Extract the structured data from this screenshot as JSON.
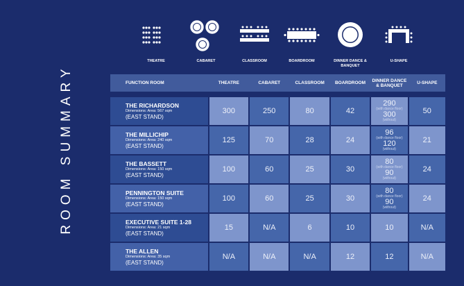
{
  "page_title": "ROOM SUMMARY",
  "layouts": [
    {
      "label": "THEATRE",
      "icon": "theatre-layout-icon"
    },
    {
      "label": "CABARET",
      "icon": "cabaret-layout-icon"
    },
    {
      "label": "CLASSROOM",
      "icon": "classroom-layout-icon"
    },
    {
      "label": "BOARDROOM",
      "icon": "boardroom-layout-icon"
    },
    {
      "label": "DINNER DANCE & BANQUET",
      "icon": "dinner-layout-icon"
    },
    {
      "label": "U-SHAPE",
      "icon": "ushape-layout-icon"
    }
  ],
  "table": {
    "headers": [
      "FUNCTION ROOM",
      "THEATRE",
      "CABARET",
      "CLASSROOM",
      "BOARDROOM",
      "DINNER DANCE & BANQUET",
      "U-SHAPE"
    ],
    "rows": [
      {
        "name": "THE RICHARDSON",
        "dimensions": "Dimensions: Area: 567 sqm",
        "stand": "(EAST STAND)",
        "theatre": "300",
        "cabaret": "250",
        "classroom": "80",
        "boardroom": "42",
        "dinner_with": "290",
        "dinner_with_note": "(with dance floor)",
        "dinner_without": "300",
        "dinner_without_note": "(without)",
        "ushape": "50"
      },
      {
        "name": "THE MILLICHIP",
        "dimensions": "Dimensions: Area: 240 sqm",
        "stand": "(EAST STAND)",
        "theatre": "125",
        "cabaret": "70",
        "classroom": "28",
        "boardroom": "24",
        "dinner_with": "96",
        "dinner_with_note": "(with dance floor)",
        "dinner_without": "120",
        "dinner_without_note": "(without)",
        "ushape": "21"
      },
      {
        "name": "THE BASSETT",
        "dimensions": "Dimensions: Area: 150 sqm",
        "stand": "(EAST STAND)",
        "theatre": "100",
        "cabaret": "60",
        "classroom": "25",
        "boardroom": "30",
        "dinner_with": "80",
        "dinner_with_note": "(with dance floor)",
        "dinner_without": "90",
        "dinner_without_note": "(without)",
        "ushape": "24"
      },
      {
        "name": "PENNINGTON SUITE",
        "dimensions": "Dimensions: Area: 150 sqm",
        "stand": "(EAST STAND)",
        "theatre": "100",
        "cabaret": "60",
        "classroom": "25",
        "boardroom": "30",
        "dinner_with": "80",
        "dinner_with_note": "(with dance floor)",
        "dinner_without": "90",
        "dinner_without_note": "(without)",
        "ushape": "24"
      },
      {
        "name": "EXECUTIVE SUITE 1-28",
        "dimensions": "Dimensions: Area: 21 sqm",
        "stand": "(EAST STAND)",
        "theatre": "15",
        "cabaret": "N/A",
        "classroom": "6",
        "boardroom": "10",
        "dinner": "10",
        "ushape": "N/A"
      },
      {
        "name": "THE ALLEN",
        "dimensions": "Dimensions: Area: 35 sqm",
        "stand": "(EAST STAND)",
        "theatre": "N/A",
        "cabaret": "N/A",
        "classroom": "N/A",
        "boardroom": "12",
        "dinner": "12",
        "ushape": "N/A"
      }
    ]
  },
  "colors": {
    "background": "#1b2c6c",
    "header": "#415b9c",
    "cell_light": "#7e95cc",
    "cell_dark": "#4566aa"
  }
}
